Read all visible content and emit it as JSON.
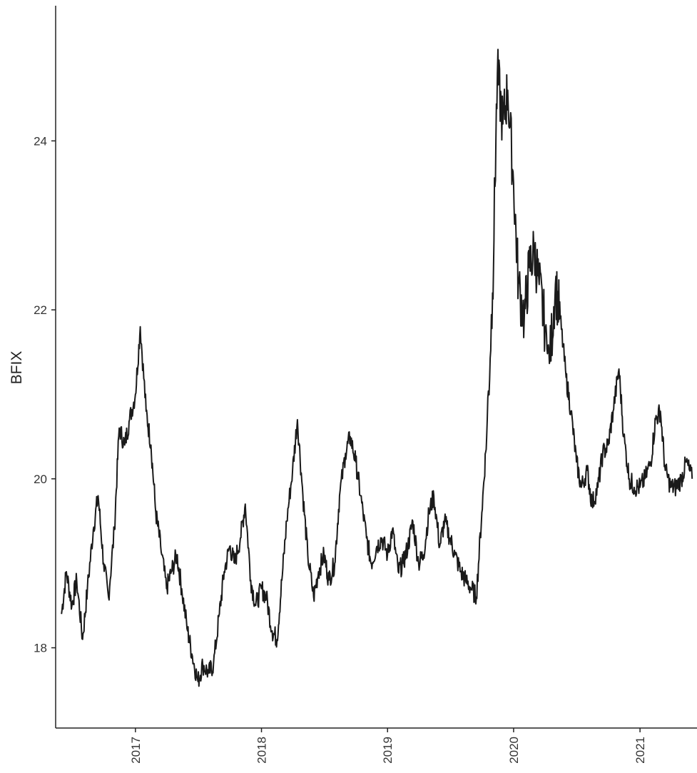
{
  "chart_data": {
    "type": "line",
    "title": "",
    "xlabel": "",
    "ylabel": "BFIX",
    "x_ticks": [
      "2017",
      "2018",
      "2019",
      "2020",
      "2021"
    ],
    "y_ticks": [
      18,
      20,
      22,
      24
    ],
    "xlim": [
      "2016-05-15",
      "2021-06-15"
    ],
    "ylim": [
      17.05,
      25.6
    ],
    "grid": false,
    "legend": "none",
    "line_color": "#1a1a1a",
    "series": [
      {
        "x": [
          "2016-06-01",
          "2016-06-15",
          "2016-07-01",
          "2016-07-15",
          "2016-08-01",
          "2016-08-15",
          "2016-09-01",
          "2016-09-15",
          "2016-10-01",
          "2016-10-15",
          "2016-11-01",
          "2016-11-15",
          "2016-12-01",
          "2016-12-15",
          "2017-01-01",
          "2017-01-15",
          "2017-02-01",
          "2017-02-15",
          "2017-03-01",
          "2017-03-15",
          "2017-04-01",
          "2017-04-15",
          "2017-05-01",
          "2017-05-15",
          "2017-06-01",
          "2017-06-15",
          "2017-07-01",
          "2017-07-15",
          "2017-08-01",
          "2017-08-15",
          "2017-09-01",
          "2017-09-15",
          "2017-10-01",
          "2017-10-15",
          "2017-11-01",
          "2017-11-15",
          "2017-12-01",
          "2017-12-15",
          "2018-01-01",
          "2018-01-15",
          "2018-02-01",
          "2018-02-15",
          "2018-03-01",
          "2018-03-15",
          "2018-04-01",
          "2018-04-15",
          "2018-05-01",
          "2018-05-15",
          "2018-06-01",
          "2018-06-15",
          "2018-07-01",
          "2018-07-15",
          "2018-08-01",
          "2018-08-15",
          "2018-09-01",
          "2018-09-15",
          "2018-10-01",
          "2018-10-15",
          "2018-11-01",
          "2018-11-15",
          "2018-12-01",
          "2018-12-15",
          "2019-01-01",
          "2019-01-15",
          "2019-02-01",
          "2019-02-15",
          "2019-03-01",
          "2019-03-15",
          "2019-04-01",
          "2019-04-15",
          "2019-05-01",
          "2019-05-15",
          "2019-06-01",
          "2019-06-15",
          "2019-07-01",
          "2019-07-15",
          "2019-08-01",
          "2019-08-15",
          "2019-09-01",
          "2019-09-15",
          "2019-10-01",
          "2019-10-15",
          "2019-11-01",
          "2019-11-15",
          "2019-12-01",
          "2019-12-15",
          "2020-01-01",
          "2020-01-15",
          "2020-02-01",
          "2020-02-15",
          "2020-03-01",
          "2020-03-15",
          "2020-04-01",
          "2020-04-15",
          "2020-05-01",
          "2020-05-15",
          "2020-06-01",
          "2020-06-15",
          "2020-07-01",
          "2020-07-15",
          "2020-08-01",
          "2020-08-15",
          "2020-09-01",
          "2020-09-15",
          "2020-10-01",
          "2020-10-15",
          "2020-11-01",
          "2020-11-15",
          "2020-12-01",
          "2020-12-15",
          "2021-01-01",
          "2021-01-15",
          "2021-02-01",
          "2021-02-15",
          "2021-03-01",
          "2021-03-15",
          "2021-04-01",
          "2021-04-15",
          "2021-05-01",
          "2021-05-15",
          "2021-06-01"
        ],
        "values": [
          18.4,
          18.9,
          18.5,
          18.8,
          18.1,
          18.7,
          19.4,
          19.8,
          19.0,
          18.6,
          19.4,
          20.6,
          20.4,
          20.7,
          21.0,
          21.8,
          20.8,
          20.4,
          19.6,
          19.2,
          18.7,
          18.9,
          19.1,
          18.7,
          18.2,
          17.9,
          17.6,
          17.8,
          17.7,
          17.8,
          18.4,
          18.9,
          19.2,
          19.0,
          19.3,
          19.7,
          18.8,
          18.5,
          18.7,
          18.6,
          18.2,
          18.1,
          18.8,
          19.5,
          20.1,
          20.7,
          19.8,
          19.1,
          18.6,
          18.9,
          19.1,
          18.8,
          19.0,
          19.8,
          20.3,
          20.5,
          20.2,
          19.8,
          19.3,
          19.0,
          19.2,
          19.3,
          19.1,
          19.4,
          18.9,
          19.0,
          19.2,
          19.5,
          19.0,
          19.1,
          19.6,
          19.8,
          19.2,
          19.5,
          19.3,
          19.1,
          18.9,
          18.8,
          18.7,
          18.6,
          19.6,
          20.5,
          22.2,
          24.8,
          24.2,
          24.6,
          23.5,
          22.3,
          21.9,
          22.5,
          22.7,
          22.3,
          21.8,
          21.4,
          22.3,
          21.9,
          21.2,
          20.8,
          20.2,
          19.9,
          20.1,
          19.7,
          19.9,
          20.3,
          20.4,
          20.8,
          21.3,
          20.5,
          20.0,
          19.9,
          19.9,
          20.0,
          20.2,
          20.7,
          20.8,
          20.1,
          19.9,
          19.9,
          20.0,
          20.2,
          20.0
        ],
        "_range_note": "none"
      }
    ]
  }
}
